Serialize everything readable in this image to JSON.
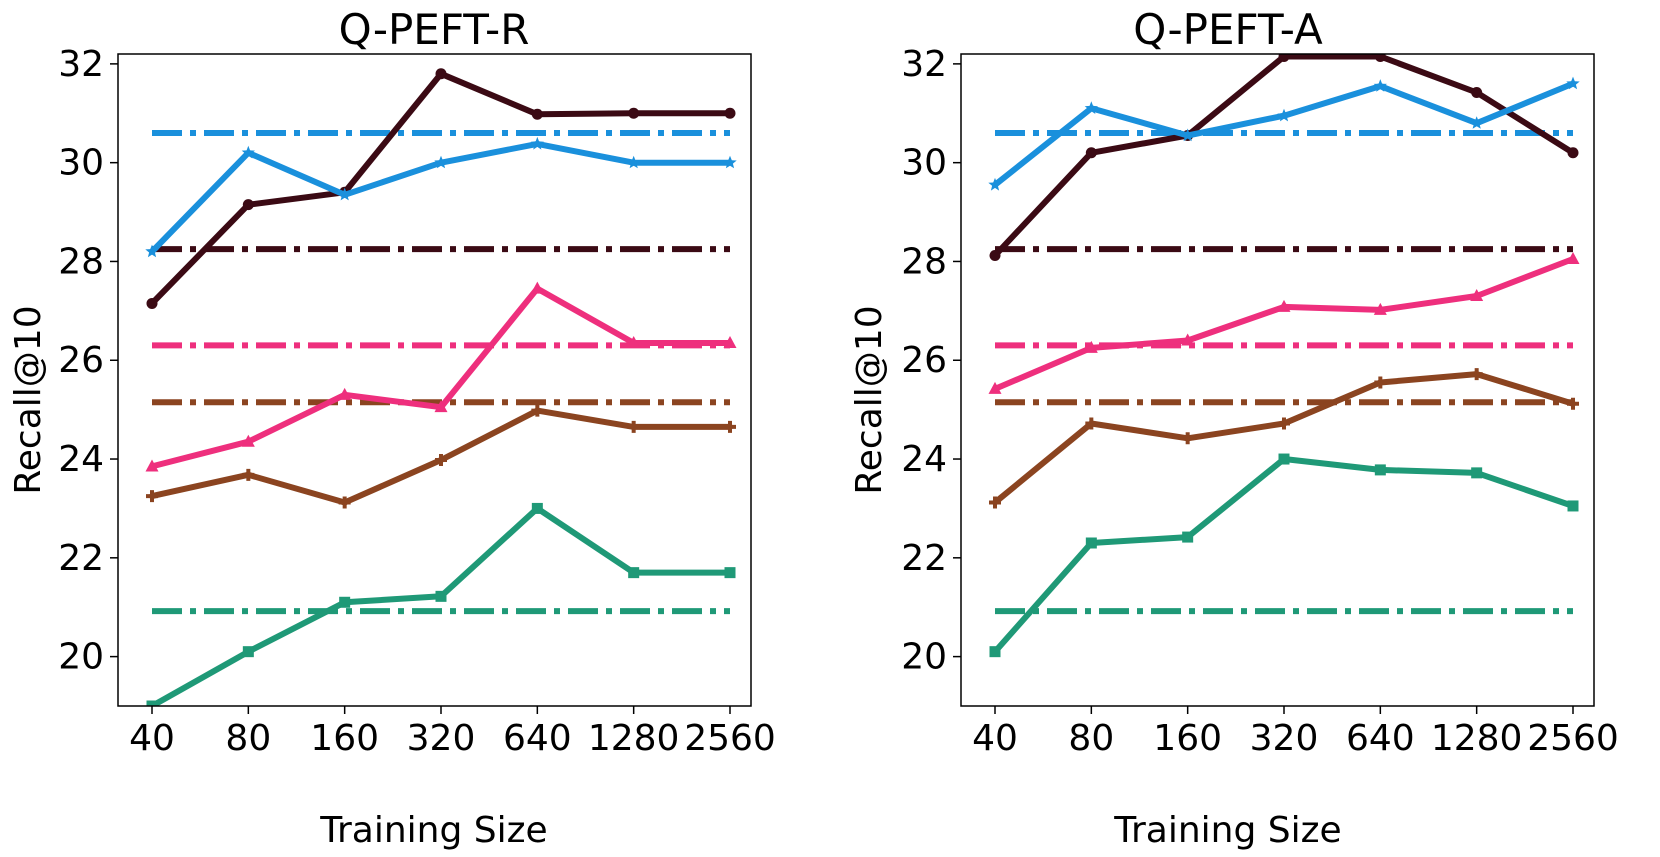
{
  "chart_data": [
    {
      "type": "line",
      "title": "Q-PEFT-R",
      "xlabel": "Training Size",
      "ylabel": "Recall@10",
      "categories": [
        "40",
        "80",
        "160",
        "320",
        "640",
        "1280",
        "2560"
      ],
      "ylim": [
        19,
        32.2
      ],
      "yticks": [
        "20",
        "22",
        "24",
        "26",
        "28",
        "30",
        "32"
      ],
      "grid": false,
      "series": [
        {
          "color": "#3b0a14",
          "marker": "circle",
          "values": [
            27.15,
            29.15,
            29.4,
            31.8,
            30.98,
            31.0,
            31.0
          ]
        },
        {
          "color": "#1a90dc",
          "marker": "star",
          "values": [
            28.2,
            30.2,
            29.35,
            30.0,
            30.38,
            30.0,
            30.0
          ]
        },
        {
          "color": "#ee2f7d",
          "marker": "triangle",
          "values": [
            23.85,
            24.35,
            25.3,
            25.05,
            27.45,
            26.35,
            26.35
          ]
        },
        {
          "color": "#8b4420",
          "marker": "plus",
          "values": [
            23.25,
            23.68,
            23.12,
            23.98,
            24.98,
            24.65,
            24.65
          ]
        },
        {
          "color": "#1f9977",
          "marker": "square",
          "values": [
            19.0,
            20.1,
            21.1,
            21.22,
            23.0,
            21.7,
            21.7
          ]
        }
      ],
      "baselines": [
        {
          "color": "#1a90dc",
          "value": 30.6
        },
        {
          "color": "#3b0a14",
          "value": 28.25
        },
        {
          "color": "#ee2f7d",
          "value": 26.3
        },
        {
          "color": "#8b4420",
          "value": 25.15
        },
        {
          "color": "#1f9977",
          "value": 20.92
        }
      ]
    },
    {
      "type": "line",
      "title": "Q-PEFT-A",
      "xlabel": "Training Size",
      "ylabel": "Recall@10",
      "categories": [
        "40",
        "80",
        "160",
        "320",
        "640",
        "1280",
        "2560"
      ],
      "ylim": [
        19,
        32.2
      ],
      "yticks": [
        "20",
        "22",
        "24",
        "26",
        "28",
        "30",
        "32"
      ],
      "grid": false,
      "series": [
        {
          "color": "#3b0a14",
          "marker": "circle",
          "values": [
            28.12,
            30.2,
            30.55,
            32.15,
            32.15,
            31.42,
            30.2
          ]
        },
        {
          "color": "#1a90dc",
          "marker": "star",
          "values": [
            29.55,
            31.1,
            30.55,
            30.95,
            31.55,
            30.8,
            31.6
          ]
        },
        {
          "color": "#ee2f7d",
          "marker": "triangle",
          "values": [
            25.42,
            26.25,
            26.4,
            27.08,
            27.02,
            27.3,
            28.05
          ]
        },
        {
          "color": "#8b4420",
          "marker": "plus",
          "values": [
            23.12,
            24.72,
            24.42,
            24.72,
            25.55,
            25.72,
            25.12
          ]
        },
        {
          "color": "#1f9977",
          "marker": "square",
          "values": [
            20.1,
            22.3,
            22.42,
            24.0,
            23.78,
            23.72,
            23.05
          ]
        }
      ],
      "baselines": [
        {
          "color": "#1a90dc",
          "value": 30.6
        },
        {
          "color": "#3b0a14",
          "value": 28.25
        },
        {
          "color": "#ee2f7d",
          "value": 26.3
        },
        {
          "color": "#8b4420",
          "value": 25.15
        },
        {
          "color": "#1f9977",
          "value": 20.92
        }
      ]
    }
  ]
}
